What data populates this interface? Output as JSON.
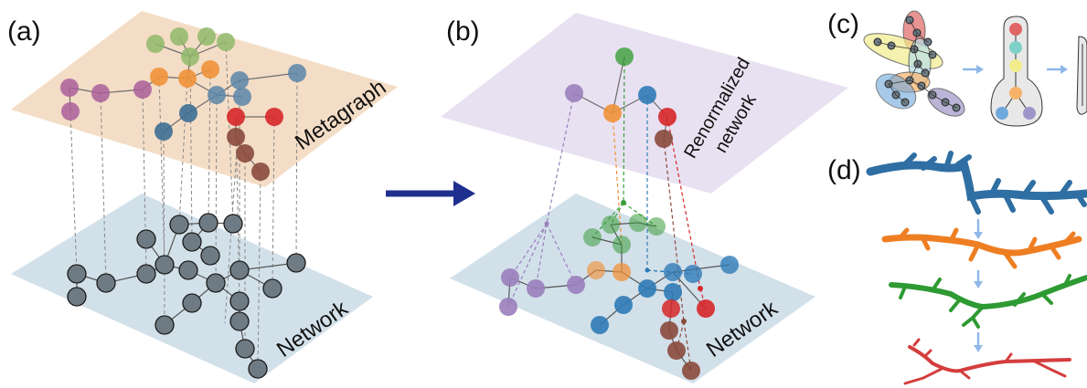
{
  "panels": {
    "a": "(a)",
    "b": "(b)",
    "c": "(c)",
    "d": "(d)"
  },
  "labels": {
    "metagraph": "Metagraph",
    "network_a": "Network",
    "renormalized_line1": "Renormalized",
    "renormalized_line2": "network",
    "network_b": "Network"
  },
  "colors": {
    "plane_top_a": "#f3d9c0",
    "plane_top_b": "#e6def0",
    "plane_bottom": "#cddde8",
    "arrow": "#1f2f8f",
    "blue": "#2f7bb6",
    "orange": "#f0923a",
    "green": "#3a9d3a",
    "red": "#d62728",
    "purple": "#9a7fbd",
    "brown": "#8a4a3c",
    "olive": "#8fb86a",
    "pink": "#a95f9a",
    "gray_node": "#6f7b84"
  }
}
